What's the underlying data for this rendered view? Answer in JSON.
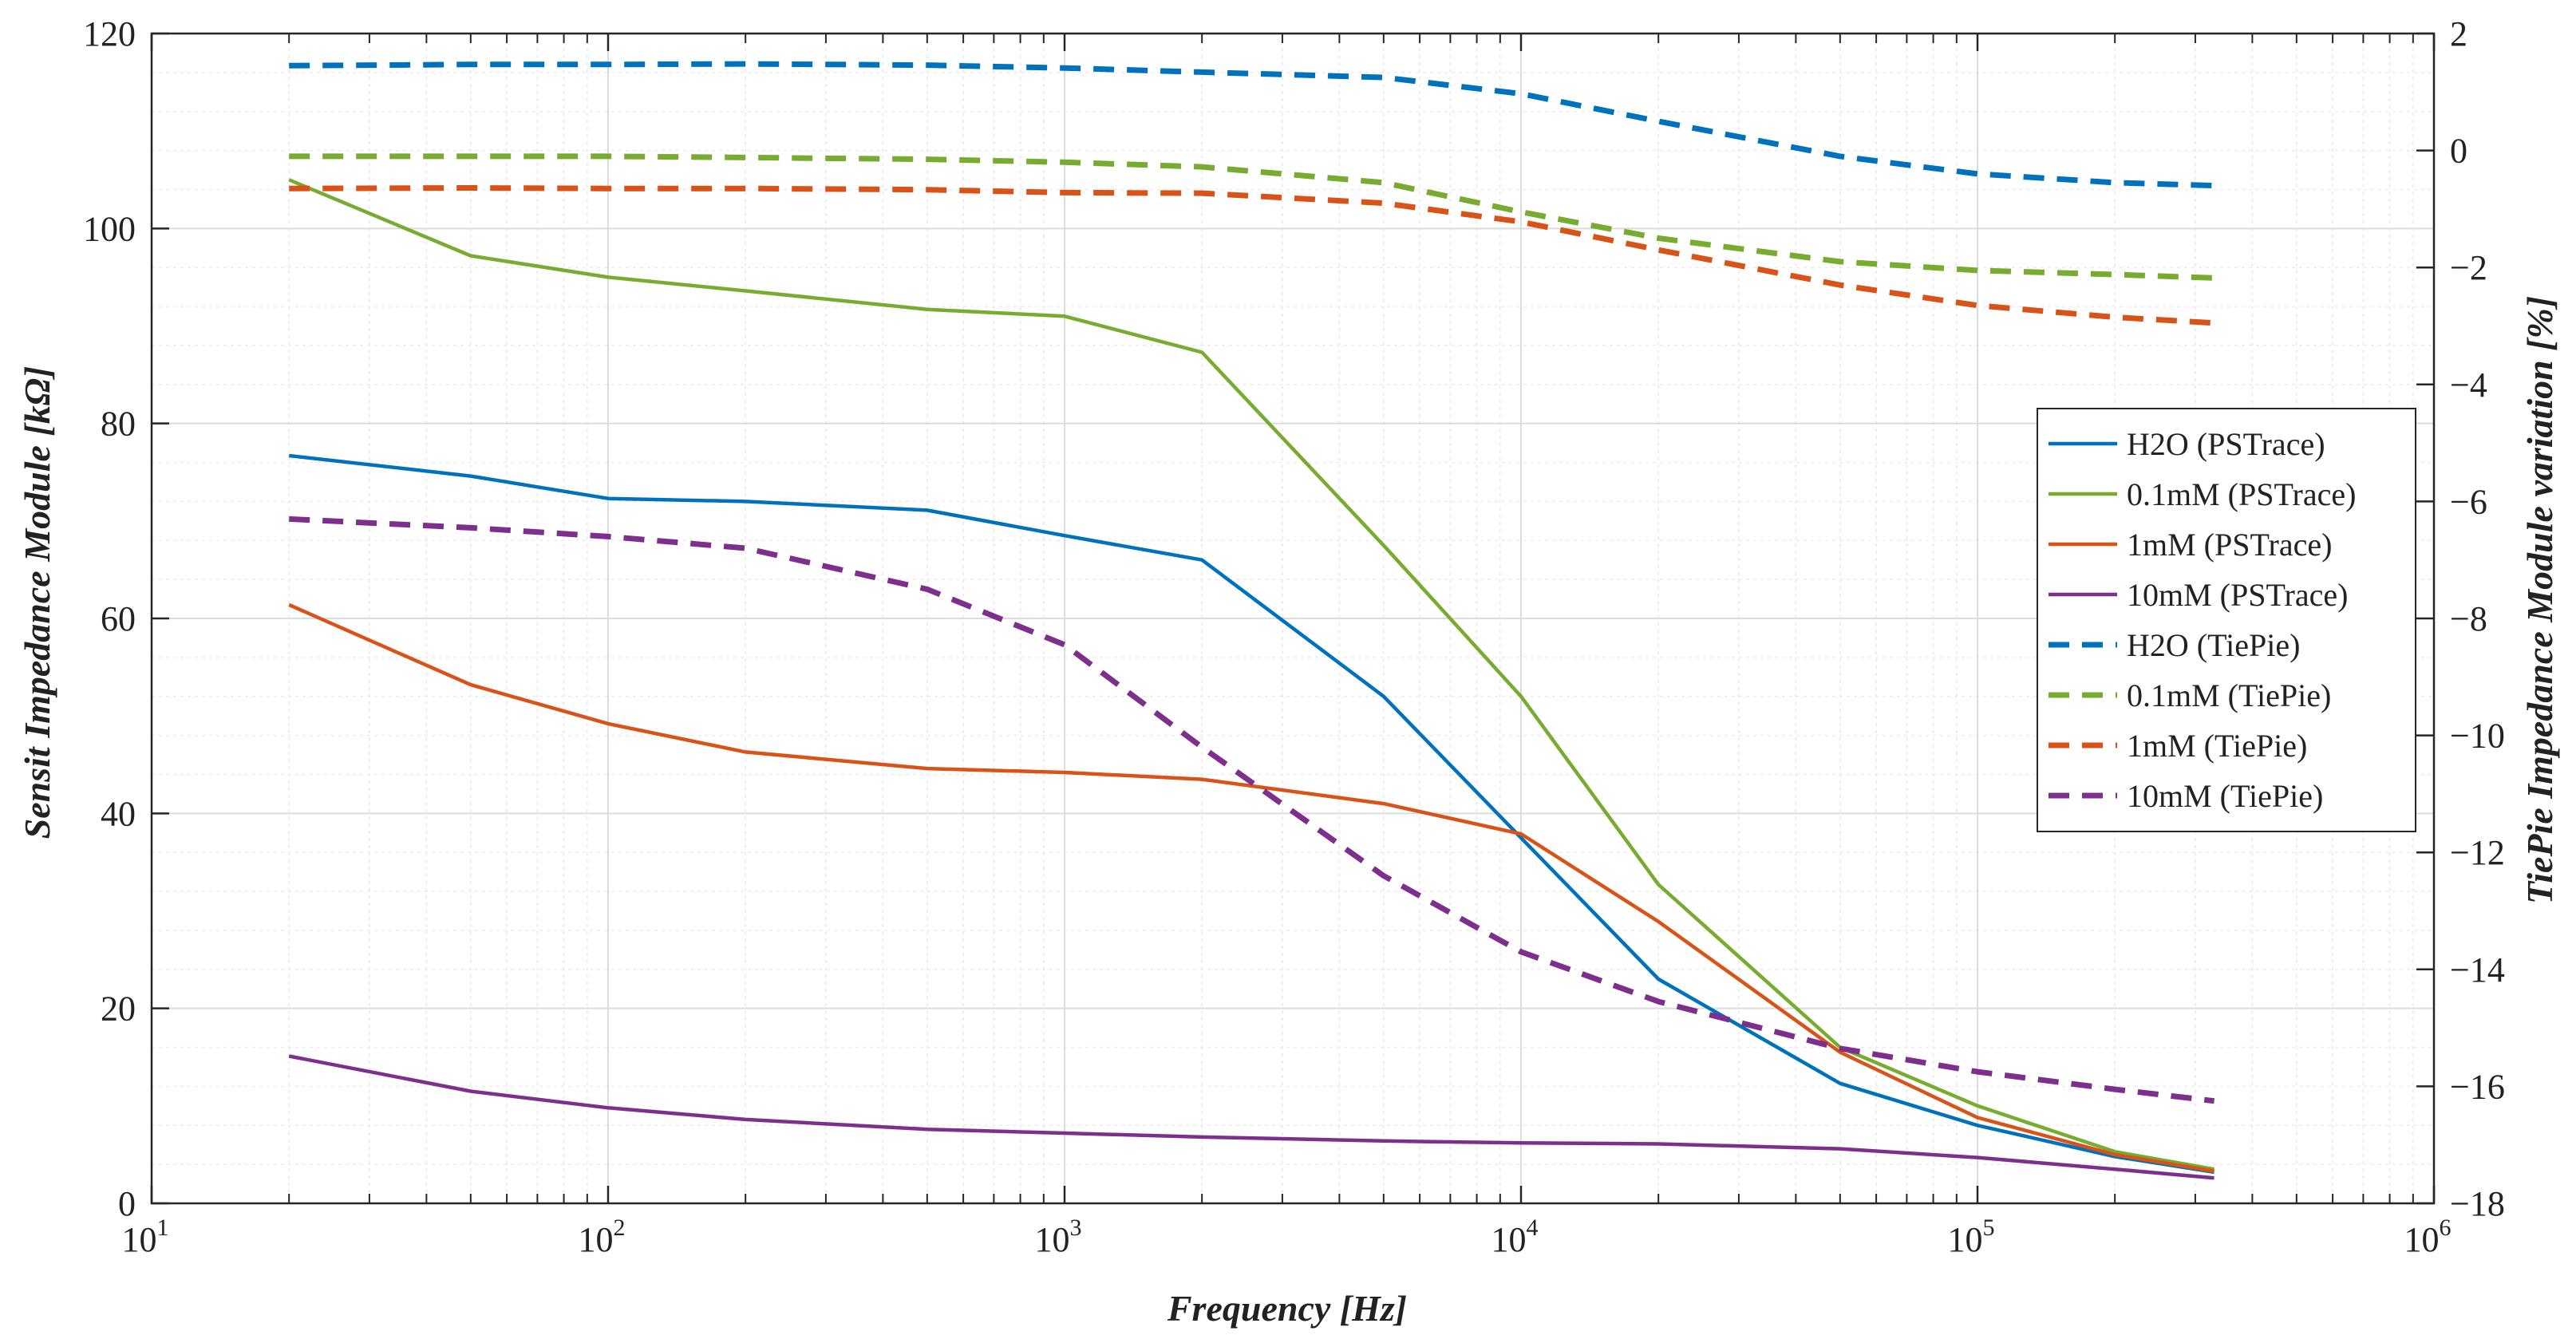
{
  "chart_data": {
    "type": "line",
    "xlabel": "Frequency [Hz]",
    "ylabel": "Sensit  Impedance  Module  [kΩ]",
    "y2label": "TiePie Impedance Module variation [%]",
    "xscale": "log",
    "xlim": [
      10,
      1000000
    ],
    "ylim": [
      0,
      120
    ],
    "y2lim": [
      -18,
      2
    ],
    "grid": true,
    "legend_position": "right",
    "x_tick_base": "10",
    "x_tick_exponents": [
      "1",
      "2",
      "3",
      "4",
      "5",
      "6"
    ],
    "x_tick_values": [
      10,
      100,
      1000,
      10000,
      100000,
      1000000
    ],
    "y_ticks": [
      0,
      20,
      40,
      60,
      80,
      100,
      120
    ],
    "y2_ticks": [
      -18,
      -16,
      -14,
      -12,
      -10,
      -8,
      -6,
      -4,
      -2,
      0,
      2
    ],
    "y2_tick_labels": [
      "−18",
      "−16",
      "−14",
      "−12",
      "−10",
      "−8",
      "−6",
      "−4",
      "−2",
      "0",
      "2"
    ],
    "x": [
      20,
      50,
      100,
      200,
      500,
      1000,
      2000,
      5000,
      10000,
      20000,
      50000,
      100000,
      200000,
      330000
    ],
    "series": [
      {
        "name": "H2O (PSTrace)",
        "color": "#0072BD",
        "dash": false,
        "axis": "left",
        "values": [
          76.7,
          74.6,
          72.3,
          72.0,
          71.1,
          68.5,
          66.0,
          52.0,
          37.5,
          23.0,
          12.3,
          8.0,
          4.8,
          3.2
        ]
      },
      {
        "name": "0.1mM (PSTrace)",
        "color": "#77AC30",
        "dash": false,
        "axis": "left",
        "values": [
          105.0,
          97.2,
          95.0,
          93.6,
          91.7,
          91.0,
          87.3,
          67.5,
          52.0,
          32.7,
          16.0,
          10.0,
          5.3,
          3.5
        ]
      },
      {
        "name": "1mM (PSTrace)",
        "color": "#D95319",
        "dash": false,
        "axis": "left",
        "values": [
          61.4,
          53.2,
          49.2,
          46.3,
          44.6,
          44.2,
          43.5,
          41.0,
          37.9,
          28.9,
          15.5,
          8.8,
          5.0,
          3.3
        ]
      },
      {
        "name": "10mM (PSTrace)",
        "color": "#7E2F8E",
        "dash": false,
        "axis": "left",
        "values": [
          15.1,
          11.5,
          9.8,
          8.6,
          7.6,
          7.2,
          6.8,
          6.4,
          6.2,
          6.1,
          5.6,
          4.7,
          3.5,
          2.6
        ]
      },
      {
        "name": "H2O (TiePie)",
        "color": "#0072BD",
        "dash": true,
        "axis": "right",
        "values": [
          1.45,
          1.47,
          1.47,
          1.48,
          1.46,
          1.41,
          1.34,
          1.25,
          0.97,
          0.5,
          -0.1,
          -0.4,
          -0.55,
          -0.6
        ]
      },
      {
        "name": "0.1mM (TiePie)",
        "color": "#77AC30",
        "dash": true,
        "axis": "right",
        "values": [
          -0.1,
          -0.1,
          -0.1,
          -0.12,
          -0.15,
          -0.2,
          -0.28,
          -0.55,
          -1.05,
          -1.5,
          -1.9,
          -2.05,
          -2.12,
          -2.18
        ]
      },
      {
        "name": "1mM (TiePie)",
        "color": "#D95319",
        "dash": true,
        "axis": "right",
        "values": [
          -0.65,
          -0.64,
          -0.65,
          -0.65,
          -0.67,
          -0.72,
          -0.73,
          -0.9,
          -1.22,
          -1.7,
          -2.3,
          -2.65,
          -2.85,
          -2.95
        ]
      },
      {
        "name": "10mM (TiePie)",
        "color": "#7E2F8E",
        "dash": true,
        "axis": "right",
        "values": [
          -6.3,
          -6.45,
          -6.6,
          -6.8,
          -7.5,
          -8.45,
          -10.2,
          -12.4,
          -13.7,
          -14.55,
          -15.35,
          -15.75,
          -16.05,
          -16.25
        ]
      }
    ]
  }
}
